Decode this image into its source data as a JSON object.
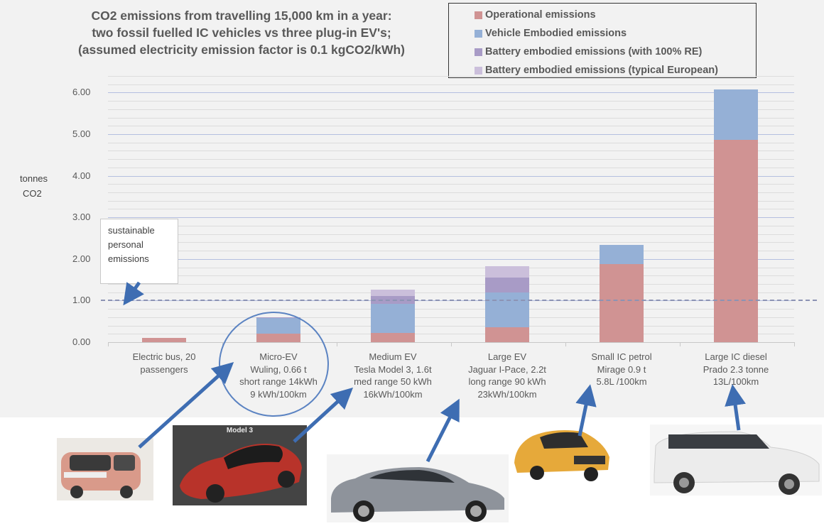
{
  "chart_data": {
    "type": "bar",
    "stacked": true,
    "title": "CO2 emissions from travelling 15,000 km in a year: two fossil fuelled IC vehicles vs three plug-in EV's; (assumed electricity emission factor is 0.1 kgCO2/kWh)",
    "title_lines": [
      "CO2 emissions from travelling 15,000 km in a year:",
      "two fossil fuelled IC vehicles vs three plug-in EV's;",
      "(assumed electricity emission factor is 0.1 kgCO2/kWh)"
    ],
    "xlabel": "",
    "ylabel": "tonnes CO2",
    "ylabel_lines": [
      "tonnes",
      "CO2"
    ],
    "ylim": [
      0,
      6.5
    ],
    "yticks": [
      "0.00",
      "1.00",
      "2.00",
      "3.00",
      "4.00",
      "5.00",
      "6.00"
    ],
    "grid": true,
    "legend_position": "top-right",
    "categories": [
      "Electric bus, 20 passengers",
      "Micro-EV Wuling, 0.66 t short range 14kWh 9 kWh/100km",
      "Medium EV Tesla Model 3, 1.6t med range 50 kWh 16kWh/100km",
      "Large EV Jaguar I-Pace, 2.2t long range 90 kWh 23kWh/100km",
      "Small IC petrol Mirage 0.9 t 5.8L /100km",
      "Large IC diesel Prado 2.3 tonne 13L/100km"
    ],
    "category_lines": [
      [
        "Electric bus, 20",
        "passengers"
      ],
      [
        "Micro-EV",
        "Wuling,  0.66 t",
        "short range 14kWh",
        "9 kWh/100km"
      ],
      [
        "Medium EV",
        "Tesla Model 3, 1.6t",
        "med range 50 kWh",
        "16kWh/100km"
      ],
      [
        "Large EV",
        "Jaguar I-Pace, 2.2t",
        "long range 90 kWh",
        "23kWh/100km"
      ],
      [
        "Small IC petrol",
        "Mirage 0.9 t",
        "5.8L /100km"
      ],
      [
        "Large IC diesel",
        "Prado 2.3 tonne",
        "13L/100km"
      ]
    ],
    "series": [
      {
        "name": "Operational emissions",
        "color": "#d09393",
        "values": [
          0.1,
          0.2,
          0.23,
          0.35,
          1.87,
          4.87
        ]
      },
      {
        "name": "Vehicle Embodied emissions",
        "color": "#95b0d6",
        "values": [
          0.0,
          0.38,
          0.7,
          0.85,
          0.46,
          1.21
        ]
      },
      {
        "name": "Battery embodied emissions (with 100% RE)",
        "color": "#a89bc6",
        "values": [
          0.0,
          0.02,
          0.18,
          0.35,
          0.0,
          0.0
        ]
      },
      {
        "name": "Battery embodied emissions (typical European)",
        "color": "#cbbfdb",
        "values": [
          0.0,
          0.0,
          0.16,
          0.28,
          0.0,
          0.0
        ]
      }
    ],
    "totals": [
      0.1,
      0.6,
      1.27,
      1.83,
      2.33,
      6.08
    ],
    "annotations": [
      {
        "type": "hline",
        "y": 1.05,
        "style": "dashed",
        "label": "sustainable personal emissions"
      },
      {
        "type": "circle",
        "target": "Micro-EV Wuling, 0.66 t short range 14kWh 9 kWh/100km"
      }
    ]
  },
  "callout": {
    "lines": [
      "sustainable",
      "personal",
      "emissions"
    ]
  },
  "photos": [
    {
      "name": "Wuling micro-EV",
      "color": "#d99a8a",
      "label": ""
    },
    {
      "name": "Tesla Model 3",
      "color": "#b8332a",
      "label": "Model 3"
    },
    {
      "name": "Jaguar I-Pace",
      "color": "#8e939b",
      "label": ""
    },
    {
      "name": "Mitsubishi Mirage",
      "color": "#e6a93a",
      "label": ""
    },
    {
      "name": "Toyota Prado",
      "color": "#ededed",
      "label": ""
    }
  ]
}
